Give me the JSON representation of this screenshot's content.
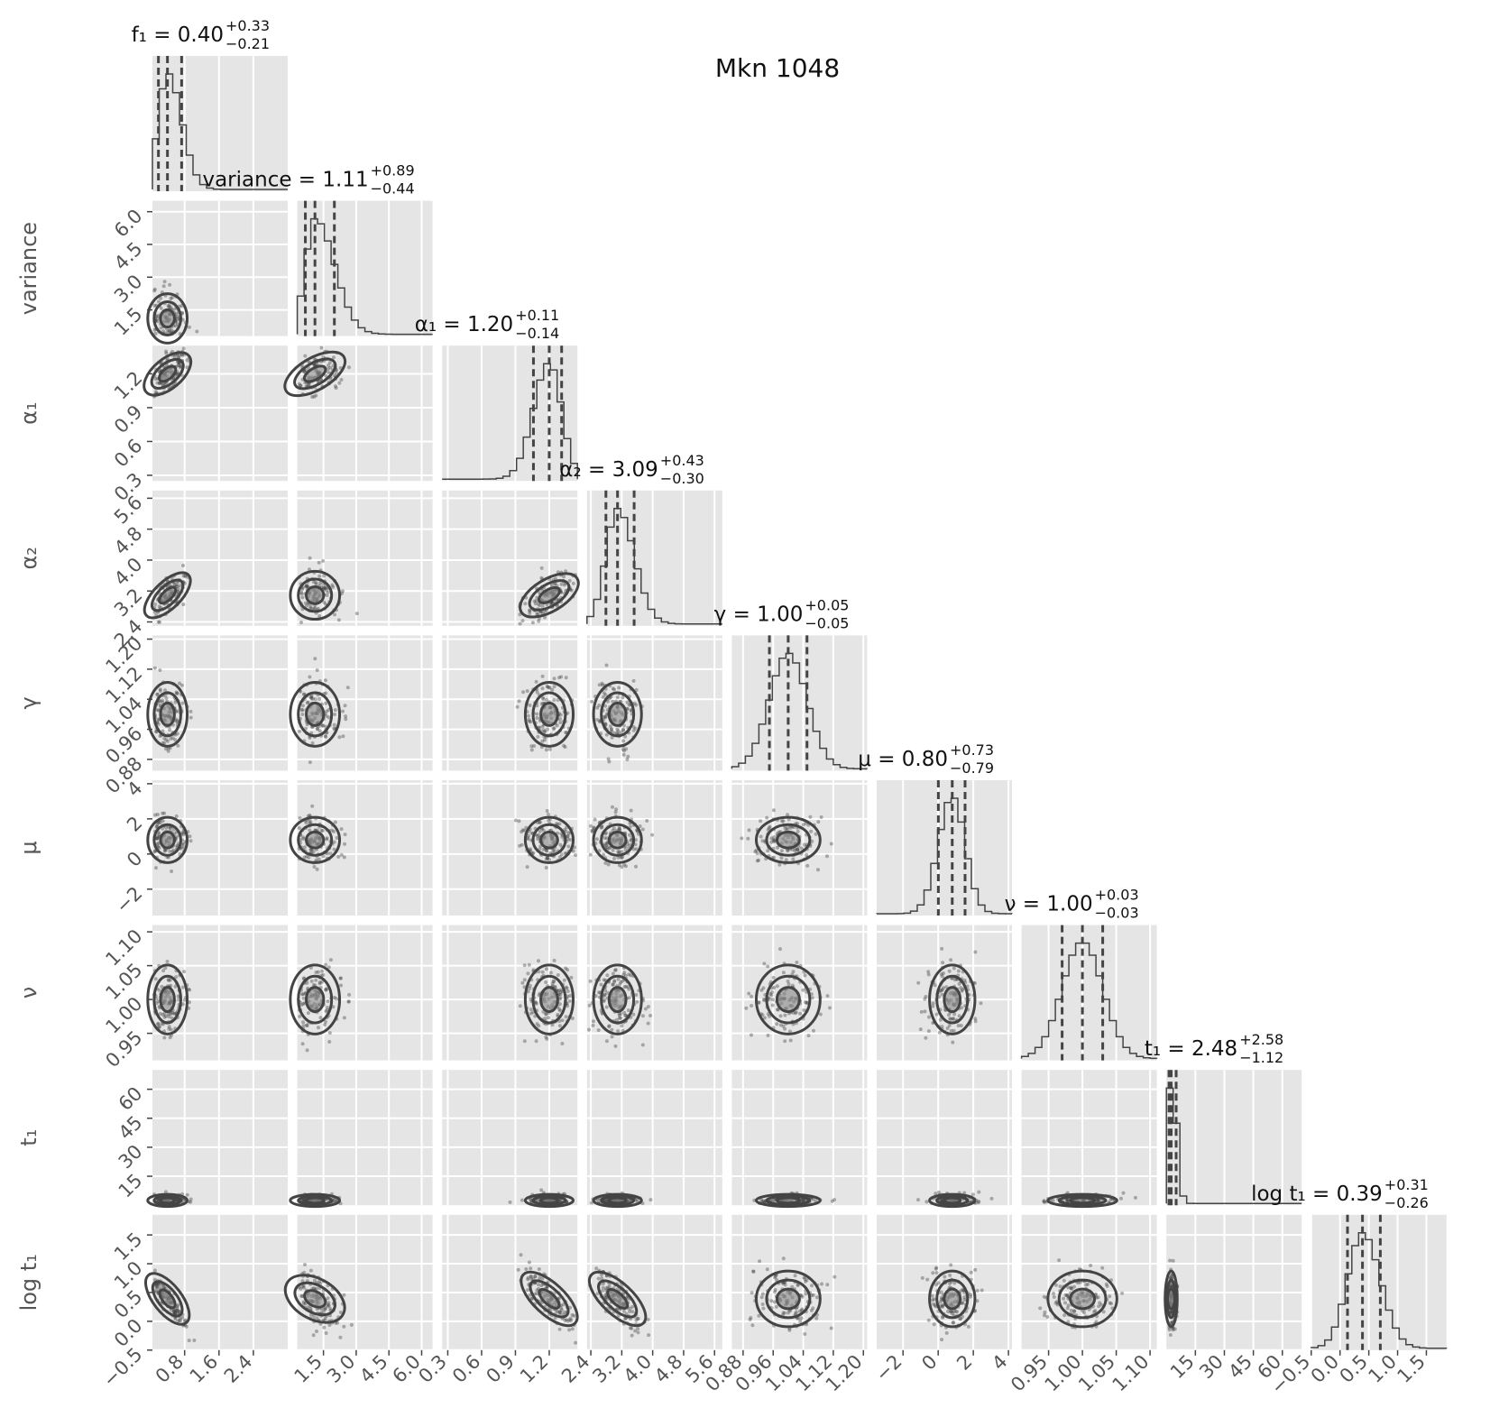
{
  "title": "Mkn 1048",
  "chart_data": {
    "type": "corner",
    "title": "Mkn 1048",
    "grid": true,
    "quantiles_shown": [
      0.16,
      0.5,
      0.84
    ],
    "colors": {
      "panel_bg": "#e5e5e5",
      "grid": "#ffffff",
      "marks": "#444444",
      "tick_label": "#555555",
      "text": "#111111"
    },
    "parameters": [
      {
        "name": "f₁",
        "stat_label": "f₁ = 0.40",
        "plus": "+0.33",
        "minus": "−0.21",
        "median": 0.4,
        "err_plus": 0.33,
        "err_minus": 0.21,
        "range": [
          0.05,
          3.2
        ],
        "ticks": [
          0.8,
          1.6,
          2.4
        ],
        "tick_labels": [
          "0.8",
          "1.6",
          "2.4"
        ]
      },
      {
        "name": "variance",
        "stat_label": "variance = 1.11",
        "plus": "+0.89",
        "minus": "−0.44",
        "median": 1.11,
        "err_plus": 0.89,
        "err_minus": 0.44,
        "range": [
          0.3,
          6.5
        ],
        "ticks": [
          1.5,
          3.0,
          4.5,
          6.0
        ],
        "tick_labels": [
          "1.5",
          "3.0",
          "4.5",
          "6.0"
        ]
      },
      {
        "name": "α₁",
        "stat_label": "α₁ = 1.20",
        "plus": "+0.11",
        "minus": "−0.14",
        "median": 1.2,
        "err_plus": 0.11,
        "err_minus": 0.14,
        "range": [
          0.25,
          1.45
        ],
        "ticks": [
          0.3,
          0.6,
          0.9,
          1.2
        ],
        "tick_labels": [
          "0.3",
          "0.6",
          "0.9",
          "1.2"
        ]
      },
      {
        "name": "α₂",
        "stat_label": "α₂ = 3.09",
        "plus": "+0.43",
        "minus": "−0.30",
        "median": 3.09,
        "err_plus": 0.43,
        "err_minus": 0.3,
        "range": [
          2.3,
          5.8
        ],
        "ticks": [
          2.4,
          3.2,
          4.0,
          4.8,
          5.6
        ],
        "tick_labels": [
          "2.4",
          "3.2",
          "4.0",
          "4.8",
          "5.6"
        ]
      },
      {
        "name": "γ",
        "stat_label": "γ = 1.00",
        "plus": "+0.05",
        "minus": "−0.05",
        "median": 1.0,
        "err_plus": 0.05,
        "err_minus": 0.05,
        "range": [
          0.85,
          1.21
        ],
        "ticks": [
          0.88,
          0.96,
          1.04,
          1.12,
          1.2
        ],
        "tick_labels": [
          "0.88",
          "0.96",
          "1.04",
          "1.12",
          "1.20"
        ]
      },
      {
        "name": "μ",
        "stat_label": "μ = 0.80",
        "plus": "+0.73",
        "minus": "−0.79",
        "median": 0.8,
        "err_plus": 0.73,
        "err_minus": 0.79,
        "range": [
          -3.5,
          4.2
        ],
        "ticks": [
          -2,
          0,
          2,
          4
        ],
        "tick_labels": [
          "−2",
          "0",
          "2",
          "4"
        ]
      },
      {
        "name": "ν",
        "stat_label": "ν = 1.00",
        "plus": "+0.03",
        "minus": "−0.03",
        "median": 1.0,
        "err_plus": 0.03,
        "err_minus": 0.03,
        "range": [
          0.91,
          1.11
        ],
        "ticks": [
          0.95,
          1.0,
          1.05,
          1.1
        ],
        "tick_labels": [
          "0.95",
          "1.00",
          "1.05",
          "1.10"
        ]
      },
      {
        "name": "t₁",
        "stat_label": "t₁ = 2.48",
        "plus": "+2.58",
        "minus": "−1.12",
        "median": 2.48,
        "err_plus": 2.58,
        "err_minus": 1.12,
        "range": [
          0.0,
          70.0
        ],
        "ticks": [
          15,
          30,
          45,
          60
        ],
        "tick_labels": [
          "15",
          "30",
          "45",
          "60"
        ]
      },
      {
        "name": "log t₁",
        "stat_label": "log t₁ = 0.39",
        "plus": "+0.31",
        "minus": "−0.26",
        "median": 0.39,
        "err_plus": 0.31,
        "err_minus": 0.26,
        "range": [
          -0.5,
          1.85
        ],
        "ticks": [
          -0.5,
          0.0,
          0.5,
          1.0,
          1.5
        ],
        "tick_labels": [
          "−0.5",
          "0.0",
          "0.5",
          "1.0",
          "1.5"
        ]
      }
    ]
  }
}
